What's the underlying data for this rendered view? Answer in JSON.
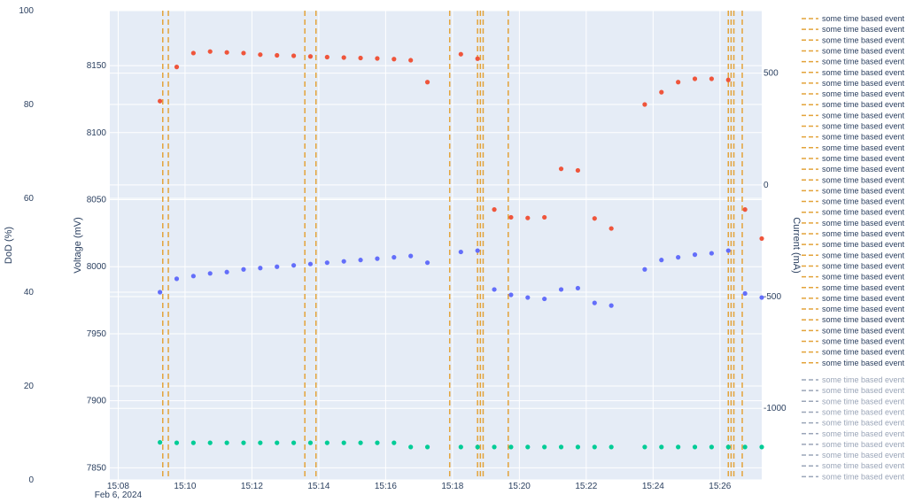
{
  "chart_data": {
    "type": "scatter",
    "x_axis": {
      "type": "time",
      "ticks": [
        "15:08",
        "15:10",
        "15:12",
        "15:14",
        "15:16",
        "15:18",
        "15:20",
        "15:22",
        "15:24",
        "15:26"
      ],
      "date_label": "Feb 6, 2024",
      "range": [
        "15:07:45",
        "15:27:15"
      ]
    },
    "y_axes": {
      "dod": {
        "title": "DoD (%)",
        "range": [
          0,
          100
        ],
        "ticks": [
          0,
          20,
          40,
          60,
          80,
          100
        ]
      },
      "voltage": {
        "title": "Voltage (mV)",
        "range": [
          7841,
          8191
        ],
        "ticks": [
          7850,
          7900,
          7950,
          8000,
          8050,
          8100,
          8150
        ]
      },
      "current": {
        "title": "Current (mA)",
        "range": [
          -1320,
          780
        ],
        "ticks": [
          -1000,
          -500,
          0,
          500
        ]
      }
    },
    "grid": true,
    "series": [
      {
        "axis": "current",
        "color": "#ef553b",
        "points": [
          [
            "15:09:15",
            375
          ],
          [
            "15:09:45",
            528
          ],
          [
            "15:10:15",
            590
          ],
          [
            "15:10:45",
            597
          ],
          [
            "15:11:15",
            593
          ],
          [
            "15:11:45",
            590
          ],
          [
            "15:12:15",
            583
          ],
          [
            "15:12:45",
            580
          ],
          [
            "15:13:15",
            578
          ],
          [
            "15:13:45",
            575
          ],
          [
            "15:14:15",
            572
          ],
          [
            "15:14:45",
            570
          ],
          [
            "15:15:15",
            568
          ],
          [
            "15:15:45",
            566
          ],
          [
            "15:16:15",
            563
          ],
          [
            "15:16:45",
            558
          ],
          [
            "15:17:15",
            460
          ],
          [
            "15:18:15",
            585
          ],
          [
            "15:18:45",
            565
          ],
          [
            "15:19:15",
            -110
          ],
          [
            "15:19:45",
            -145
          ],
          [
            "15:20:15",
            -148
          ],
          [
            "15:20:45",
            -145
          ],
          [
            "15:21:15",
            72
          ],
          [
            "15:21:45",
            65
          ],
          [
            "15:22:15",
            -150
          ],
          [
            "15:22:45",
            -195
          ],
          [
            "15:23:45",
            360
          ],
          [
            "15:24:15",
            415
          ],
          [
            "15:24:45",
            460
          ],
          [
            "15:25:15",
            475
          ],
          [
            "15:25:45",
            475
          ],
          [
            "15:26:15",
            470
          ],
          [
            "15:26:45",
            -110
          ],
          [
            "15:27:15",
            -240
          ]
        ]
      },
      {
        "axis": "voltage",
        "color": "#636efa",
        "points": [
          [
            "15:09:15",
            7981
          ],
          [
            "15:09:45",
            7991
          ],
          [
            "15:10:15",
            7993
          ],
          [
            "15:10:45",
            7995
          ],
          [
            "15:11:15",
            7996
          ],
          [
            "15:11:45",
            7998
          ],
          [
            "15:12:15",
            7999
          ],
          [
            "15:12:45",
            8000
          ],
          [
            "15:13:15",
            8001
          ],
          [
            "15:13:45",
            8002
          ],
          [
            "15:14:15",
            8003
          ],
          [
            "15:14:45",
            8004
          ],
          [
            "15:15:15",
            8005
          ],
          [
            "15:15:45",
            8006
          ],
          [
            "15:16:15",
            8007
          ],
          [
            "15:16:45",
            8008
          ],
          [
            "15:17:15",
            8003
          ],
          [
            "15:18:15",
            8011
          ],
          [
            "15:18:45",
            8012
          ],
          [
            "15:19:15",
            7983
          ],
          [
            "15:19:45",
            7979
          ],
          [
            "15:20:15",
            7977
          ],
          [
            "15:20:45",
            7976
          ],
          [
            "15:21:15",
            7983
          ],
          [
            "15:21:45",
            7984
          ],
          [
            "15:22:15",
            7973
          ],
          [
            "15:22:45",
            7971
          ],
          [
            "15:23:45",
            7998
          ],
          [
            "15:24:15",
            8005
          ],
          [
            "15:24:45",
            8007
          ],
          [
            "15:25:15",
            8009
          ],
          [
            "15:25:45",
            8010
          ],
          [
            "15:26:15",
            8012
          ],
          [
            "15:26:45",
            7980
          ],
          [
            "15:27:15",
            7977
          ]
        ]
      },
      {
        "axis": "dod",
        "color": "#00cc96",
        "points": [
          [
            "15:09:15",
            8.0
          ],
          [
            "15:09:45",
            7.9
          ],
          [
            "15:10:15",
            7.9
          ],
          [
            "15:10:45",
            7.9
          ],
          [
            "15:11:15",
            7.9
          ],
          [
            "15:11:45",
            7.9
          ],
          [
            "15:12:15",
            7.9
          ],
          [
            "15:12:45",
            7.9
          ],
          [
            "15:13:15",
            7.9
          ],
          [
            "15:13:45",
            7.9
          ],
          [
            "15:14:15",
            7.9
          ],
          [
            "15:14:45",
            7.9
          ],
          [
            "15:15:15",
            7.9
          ],
          [
            "15:15:45",
            7.9
          ],
          [
            "15:16:15",
            7.9
          ],
          [
            "15:16:45",
            7.0
          ],
          [
            "15:17:15",
            7.0
          ],
          [
            "15:18:15",
            7.0
          ],
          [
            "15:18:45",
            7.0
          ],
          [
            "15:19:15",
            7.0
          ],
          [
            "15:19:45",
            7.0
          ],
          [
            "15:20:15",
            7.0
          ],
          [
            "15:20:45",
            7.0
          ],
          [
            "15:21:15",
            7.0
          ],
          [
            "15:21:45",
            7.0
          ],
          [
            "15:22:15",
            7.0
          ],
          [
            "15:22:45",
            7.0
          ],
          [
            "15:23:45",
            7.0
          ],
          [
            "15:24:15",
            7.0
          ],
          [
            "15:24:45",
            7.0
          ],
          [
            "15:25:15",
            7.0
          ],
          [
            "15:25:45",
            7.0
          ],
          [
            "15:26:15",
            7.0
          ],
          [
            "15:26:45",
            7.0
          ],
          [
            "15:27:15",
            7.0
          ]
        ]
      }
    ],
    "event_lines": {
      "color": "#e3a33a",
      "times": [
        "15:09:20",
        "15:09:30",
        "15:13:35",
        "15:13:55",
        "15:17:55",
        "15:18:45",
        "15:18:50",
        "15:18:55",
        "15:19:40",
        "15:26:15",
        "15:26:20",
        "15:26:25",
        "15:26:40"
      ]
    },
    "legend": {
      "placement": "right",
      "label": "some time based event",
      "active_count": 33,
      "active_color": "#e3a33a",
      "inactive_count": 10,
      "inactive_color": "#9aa5b8"
    }
  }
}
